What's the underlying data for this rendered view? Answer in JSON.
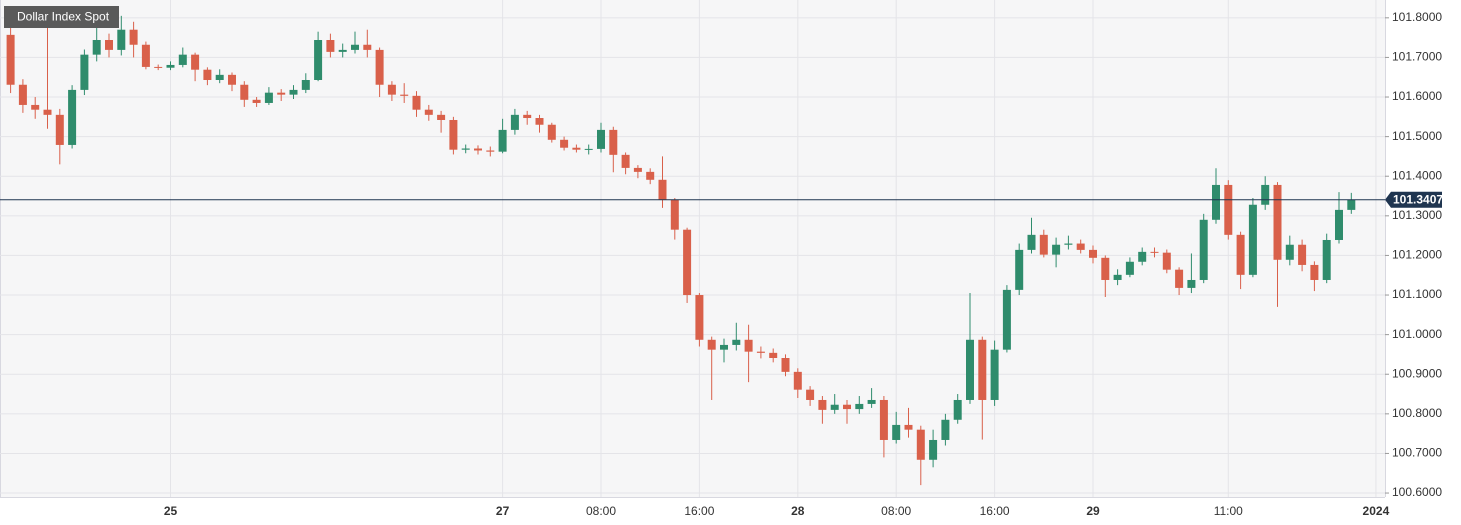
{
  "chart_data": {
    "type": "candlestick",
    "title": "Dollar Index Spot",
    "last_price": 101.3407,
    "up_color": "#2f8c6c",
    "down_color": "#d9604a",
    "grid": true,
    "ylim": [
      100.59,
      101.845
    ],
    "yticks": [
      {
        "value": 100.6,
        "label": "100.6000"
      },
      {
        "value": 100.7,
        "label": "100.7000"
      },
      {
        "value": 100.8,
        "label": "100.8000"
      },
      {
        "value": 100.9,
        "label": "100.9000"
      },
      {
        "value": 101.0,
        "label": "101.0000"
      },
      {
        "value": 101.1,
        "label": "101.1000"
      },
      {
        "value": 101.2,
        "label": "101.2000"
      },
      {
        "value": 101.3,
        "label": "101.3000"
      },
      {
        "value": 101.4,
        "label": "101.4000"
      },
      {
        "value": 101.5,
        "label": "101.5000"
      },
      {
        "value": 101.6,
        "label": "101.6000"
      },
      {
        "value": 101.7,
        "label": "101.7000"
      },
      {
        "value": 101.8,
        "label": "101.8000"
      }
    ],
    "categories": [
      null,
      null,
      null,
      null,
      null,
      null,
      null,
      null,
      null,
      null,
      null,
      null,
      null,
      "25",
      null,
      null,
      null,
      null,
      null,
      null,
      null,
      null,
      null,
      null,
      null,
      null,
      null,
      null,
      null,
      null,
      null,
      null,
      null,
      null,
      null,
      null,
      null,
      null,
      null,
      null,
      "27",
      null,
      null,
      null,
      null,
      null,
      null,
      null,
      "08:00",
      null,
      null,
      null,
      null,
      null,
      null,
      null,
      "16:00",
      null,
      null,
      null,
      null,
      null,
      null,
      null,
      "28",
      null,
      null,
      null,
      null,
      null,
      null,
      null,
      "08:00",
      null,
      null,
      null,
      null,
      null,
      null,
      null,
      "16:00",
      null,
      null,
      null,
      null,
      null,
      null,
      null,
      "29",
      null,
      null,
      null,
      null,
      null,
      null,
      null,
      null,
      null,
      null,
      "11:00",
      null,
      null,
      null,
      null,
      null,
      null,
      null,
      null,
      null,
      null,
      null,
      "2024"
    ],
    "open": [
      101.757,
      101.631,
      101.58,
      101.568,
      101.555,
      101.479,
      101.618,
      101.707,
      101.744,
      101.719,
      101.77,
      101.732,
      101.676,
      101.674,
      101.681,
      101.707,
      101.669,
      101.643,
      101.656,
      101.631,
      101.593,
      101.585,
      101.611,
      101.606,
      101.618,
      101.643,
      101.744,
      101.714,
      101.719,
      101.732,
      101.719,
      101.631,
      101.606,
      101.603,
      101.568,
      101.555,
      101.542,
      101.467,
      101.47,
      101.465,
      101.462,
      101.517,
      101.555,
      101.547,
      101.53,
      101.492,
      101.472,
      101.467,
      101.469,
      101.517,
      101.454,
      101.421,
      101.411,
      101.391,
      101.34,
      101.265,
      101.1,
      100.987,
      100.962,
      100.974,
      100.987,
      100.957,
      100.954,
      100.941,
      100.906,
      100.861,
      100.835,
      100.81,
      100.823,
      100.812,
      100.825,
      100.835,
      100.734,
      100.772,
      100.76,
      100.684,
      100.734,
      100.785,
      100.835,
      100.987,
      100.835,
      100.962,
      101.113,
      101.214,
      101.252,
      101.202,
      101.227,
      101.23,
      101.214,
      101.194,
      101.138,
      101.151,
      101.184,
      101.209,
      101.207,
      101.164,
      101.118,
      101.138,
      101.29,
      101.378,
      101.252,
      101.151,
      101.328,
      101.378,
      101.189,
      101.227,
      101.176,
      101.138,
      101.239,
      101.315,
      null,
      null
    ],
    "high": [
      101.79,
      101.645,
      101.6,
      101.8,
      101.57,
      101.63,
      101.72,
      101.79,
      101.76,
      101.805,
      101.79,
      101.74,
      101.682,
      101.69,
      101.725,
      101.712,
      101.675,
      101.67,
      101.662,
      101.64,
      101.6,
      101.625,
      101.62,
      101.63,
      101.66,
      101.765,
      101.76,
      101.735,
      101.765,
      101.77,
      101.725,
      101.64,
      101.635,
      101.615,
      101.58,
      101.565,
      101.55,
      101.48,
      101.478,
      101.475,
      101.545,
      101.57,
      101.565,
      101.555,
      101.535,
      101.5,
      101.48,
      101.48,
      101.535,
      101.525,
      101.46,
      101.428,
      101.42,
      101.45,
      101.345,
      101.27,
      101.105,
      100.995,
      100.99,
      101.03,
      101.025,
      100.97,
      100.965,
      100.95,
      100.915,
      100.87,
      100.845,
      100.85,
      100.835,
      100.845,
      100.865,
      100.845,
      100.805,
      100.815,
      100.77,
      100.76,
      100.8,
      100.85,
      101.105,
      100.995,
      100.985,
      101.125,
      101.23,
      101.295,
      101.265,
      101.245,
      101.25,
      101.24,
      101.225,
      101.2,
      101.165,
      101.195,
      101.22,
      101.22,
      101.215,
      101.17,
      101.205,
      101.305,
      101.42,
      101.39,
      101.26,
      101.345,
      101.4,
      101.385,
      101.25,
      101.24,
      101.185,
      101.255,
      101.36,
      101.358,
      null,
      null
    ],
    "low": [
      101.61,
      101.56,
      101.545,
      101.52,
      101.43,
      101.47,
      101.605,
      101.69,
      101.7,
      101.705,
      101.7,
      101.67,
      101.668,
      101.668,
      101.675,
      101.64,
      101.63,
      101.635,
      101.615,
      101.575,
      101.575,
      101.58,
      101.59,
      101.595,
      101.61,
      101.64,
      101.7,
      101.7,
      101.71,
      101.7,
      101.6,
      101.59,
      101.585,
      101.55,
      101.54,
      101.51,
      101.455,
      101.458,
      101.455,
      101.45,
      101.458,
      101.505,
      101.53,
      101.51,
      101.485,
      101.465,
      101.46,
      101.455,
      101.46,
      101.41,
      101.405,
      101.395,
      101.38,
      101.32,
      101.24,
      101.08,
      100.97,
      100.835,
      100.93,
      100.96,
      100.88,
      100.94,
      100.93,
      100.895,
      100.84,
      100.82,
      100.775,
      100.8,
      100.775,
      100.8,
      100.815,
      100.69,
      100.725,
      100.74,
      100.62,
      100.665,
      100.72,
      100.775,
      100.825,
      100.735,
      100.82,
      100.955,
      101.1,
      101.205,
      101.195,
      101.17,
      101.215,
      101.205,
      101.18,
      101.095,
      101.125,
      101.145,
      101.175,
      101.195,
      101.155,
      101.1,
      101.105,
      101.13,
      101.28,
      101.24,
      101.115,
      101.145,
      101.315,
      101.07,
      101.175,
      101.16,
      101.11,
      101.13,
      101.23,
      101.305,
      null,
      null
    ],
    "close": [
      101.631,
      101.58,
      101.568,
      101.555,
      101.479,
      101.618,
      101.707,
      101.744,
      101.719,
      101.77,
      101.732,
      101.676,
      101.674,
      101.681,
      101.707,
      101.669,
      101.643,
      101.656,
      101.631,
      101.593,
      101.585,
      101.611,
      101.606,
      101.618,
      101.643,
      101.744,
      101.714,
      101.719,
      101.732,
      101.719,
      101.631,
      101.606,
      101.603,
      101.568,
      101.555,
      101.542,
      101.467,
      101.47,
      101.465,
      101.462,
      101.517,
      101.555,
      101.547,
      101.53,
      101.492,
      101.472,
      101.467,
      101.469,
      101.517,
      101.454,
      101.421,
      101.411,
      101.391,
      101.34,
      101.265,
      101.1,
      100.987,
      100.962,
      100.974,
      100.987,
      100.957,
      100.954,
      100.941,
      100.906,
      100.861,
      100.835,
      100.81,
      100.823,
      100.812,
      100.825,
      100.835,
      100.734,
      100.772,
      100.76,
      100.684,
      100.734,
      100.785,
      100.835,
      100.987,
      100.835,
      100.962,
      101.113,
      101.214,
      101.252,
      101.202,
      101.227,
      101.23,
      101.214,
      101.194,
      101.138,
      101.151,
      101.184,
      101.209,
      101.207,
      101.164,
      101.118,
      101.138,
      101.29,
      101.378,
      101.252,
      101.151,
      101.328,
      101.378,
      101.189,
      101.227,
      101.176,
      101.138,
      101.239,
      101.315,
      101.3407,
      null,
      null
    ]
  }
}
